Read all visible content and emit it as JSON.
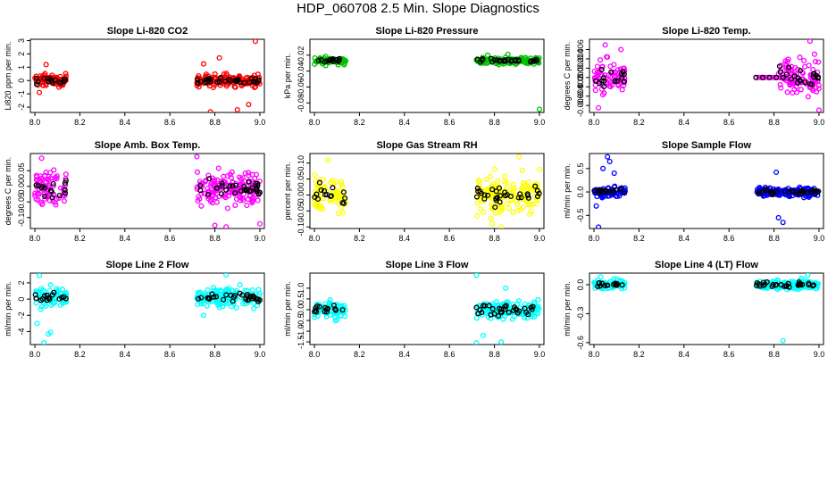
{
  "figure_title": "HDP_060708  2.5 Min. Slope Diagnostics",
  "chart_data": [
    {
      "type": "scatter",
      "title": "Slope Li-820 CO2",
      "ylabel": "Li820 ppm per min.",
      "color": "#ff0000",
      "xlim": [
        7.98,
        9.02
      ],
      "ylim": [
        -2.4,
        3.1
      ],
      "yticks": [
        -2,
        -1,
        0,
        1,
        2,
        3
      ],
      "ytick_labels": [
        "-2",
        "-1",
        "0",
        "1",
        "2",
        "3"
      ],
      "xticks": [
        8.0,
        8.2,
        8.4,
        8.6,
        8.8,
        9.0
      ],
      "xtick_labels": [
        "8.0",
        "8.2",
        "8.4",
        "8.6",
        "8.8",
        "9.0"
      ],
      "clusters": [
        [
          8.0,
          8.14
        ],
        [
          8.72,
          9.0
        ]
      ],
      "spread": 0.45,
      "center": 0.0,
      "points": [
        [
          8.98,
          2.95
        ],
        [
          8.9,
          -2.2
        ],
        [
          8.78,
          -2.35
        ],
        [
          8.95,
          -1.8
        ],
        [
          8.82,
          1.7
        ],
        [
          8.05,
          1.2
        ],
        [
          8.02,
          -0.9
        ],
        [
          8.75,
          1.25
        ]
      ]
    },
    {
      "type": "scatter",
      "title": "Slope Li-820 Pressure",
      "ylabel": "kPa per min.",
      "color": "#00c000",
      "xlim": [
        7.98,
        9.02
      ],
      "ylim": [
        -0.092,
        0.0
      ],
      "yticks": [
        -0.08,
        -0.06,
        -0.04,
        -0.02
      ],
      "ytick_labels": [
        "-0.08",
        "-0.06",
        "-0.04",
        "-0.02"
      ],
      "xticks": [
        8.0,
        8.2,
        8.4,
        8.6,
        8.8,
        9.0
      ],
      "xtick_labels": [
        "8.0",
        "8.2",
        "8.4",
        "8.6",
        "8.8",
        "9.0"
      ],
      "clusters": [
        [
          8.0,
          8.14
        ],
        [
          8.72,
          9.0
        ]
      ],
      "spread": 0.004,
      "center": -0.027,
      "points": [
        [
          9.0,
          -0.088
        ],
        [
          8.82,
          -0.032
        ],
        [
          8.94,
          -0.03
        ],
        [
          8.05,
          -0.033
        ],
        [
          8.77,
          -0.02
        ],
        [
          8.86,
          -0.019
        ]
      ]
    },
    {
      "type": "scatter",
      "title": "Slope Li-820 Temp.",
      "ylabel": "degrees C per min.",
      "color": "#ff00ff",
      "xlim": [
        7.98,
        9.02
      ],
      "ylim": [
        -0.0075,
        0.0082
      ],
      "yticks": [
        -0.006,
        -0.004,
        -0.002,
        0.0,
        0.002,
        0.004,
        0.006
      ],
      "ytick_labels": [
        "-0.006",
        "-0.004",
        "-0.002",
        "0.000",
        "0.002",
        "0.004",
        "0.006"
      ],
      "xticks": [
        8.0,
        8.2,
        8.4,
        8.6,
        8.8,
        9.0
      ],
      "xtick_labels": [
        "8.0",
        "8.2",
        "8.4",
        "8.6",
        "8.8",
        "9.0"
      ],
      "clusters": [
        [
          8.0,
          8.14
        ],
        [
          8.82,
          9.0
        ]
      ],
      "spread": 0.0035,
      "center": 0.0,
      "flat_run": [
        8.72,
        8.86
      ],
      "points": [
        [
          8.02,
          -0.0065
        ],
        [
          9.0,
          -0.007
        ],
        [
          8.96,
          0.0078
        ],
        [
          8.05,
          0.007
        ],
        [
          8.12,
          0.006
        ],
        [
          8.98,
          0.005
        ]
      ]
    },
    {
      "type": "scatter",
      "title": "Slope Amb. Box Temp.",
      "ylabel": "degrees C per min.",
      "color": "#ff00ff",
      "xlim": [
        7.98,
        9.02
      ],
      "ylim": [
        -0.135,
        0.105
      ],
      "yticks": [
        -0.1,
        -0.05,
        0.0,
        0.05
      ],
      "ytick_labels": [
        "-0.10",
        "-0.05",
        "0.00",
        "0.05"
      ],
      "xticks": [
        8.0,
        8.2,
        8.4,
        8.6,
        8.8,
        9.0
      ],
      "xtick_labels": [
        "8.0",
        "8.2",
        "8.4",
        "8.6",
        "8.8",
        "9.0"
      ],
      "clusters": [
        [
          8.0,
          8.14
        ],
        [
          8.72,
          9.0
        ]
      ],
      "spread": 0.055,
      "center": -0.005,
      "points": [
        [
          8.85,
          -0.13
        ],
        [
          8.72,
          0.095
        ],
        [
          8.03,
          0.09
        ],
        [
          9.0,
          -0.12
        ],
        [
          8.8,
          -0.125
        ]
      ]
    },
    {
      "type": "scatter",
      "title": "Slope Gas Stream RH",
      "ylabel": "percent per min.",
      "color": "#ffff00",
      "xlim": [
        7.98,
        9.02
      ],
      "ylim": [
        -0.105,
        0.13
      ],
      "yticks": [
        -0.1,
        -0.05,
        0.0,
        0.05,
        0.1
      ],
      "ytick_labels": [
        "-0.10",
        "-0.05",
        "0.00",
        "0.05",
        "0.10"
      ],
      "xticks": [
        8.0,
        8.2,
        8.4,
        8.6,
        8.8,
        9.0
      ],
      "xtick_labels": [
        "8.0",
        "8.2",
        "8.4",
        "8.6",
        "8.8",
        "9.0"
      ],
      "clusters": [
        [
          8.0,
          8.14
        ],
        [
          8.72,
          9.0
        ]
      ],
      "spread": 0.055,
      "center": 0.0,
      "points": [
        [
          8.91,
          0.12
        ],
        [
          8.83,
          -0.1
        ],
        [
          8.06,
          0.11
        ],
        [
          8.79,
          -0.09
        ],
        [
          9.0,
          0.08
        ]
      ]
    },
    {
      "type": "scatter",
      "title": "Slope Sample Flow",
      "ylabel": "ml/min per min.",
      "color": "#0000ff",
      "xlim": [
        7.98,
        9.02
      ],
      "ylim": [
        -0.78,
        0.82
      ],
      "yticks": [
        -0.5,
        0.0,
        0.5
      ],
      "ytick_labels": [
        "-0.5",
        "0.0",
        "0.5"
      ],
      "xticks": [
        8.0,
        8.2,
        8.4,
        8.6,
        8.8,
        9.0
      ],
      "xtick_labels": [
        "8.0",
        "8.2",
        "8.4",
        "8.6",
        "8.8",
        "9.0"
      ],
      "clusters": [
        [
          8.0,
          8.14
        ],
        [
          8.72,
          9.0
        ]
      ],
      "spread": 0.1,
      "center": 0.0,
      "points": [
        [
          8.02,
          -0.75
        ],
        [
          8.06,
          0.75
        ],
        [
          8.07,
          0.65
        ],
        [
          8.04,
          0.5
        ],
        [
          8.82,
          -0.55
        ],
        [
          8.81,
          0.42
        ],
        [
          8.84,
          -0.65
        ],
        [
          8.09,
          0.4
        ],
        [
          8.01,
          -0.3
        ]
      ]
    },
    {
      "type": "scatter",
      "title": "Slope Line 2 Flow",
      "ylabel": "ml/min per min.",
      "color": "#00ffff",
      "xlim": [
        7.98,
        9.02
      ],
      "ylim": [
        -5.6,
        3.2
      ],
      "yticks": [
        -4,
        -2,
        0,
        2
      ],
      "ytick_labels": [
        "-4",
        "-2",
        "0",
        "2"
      ],
      "xticks": [
        8.0,
        8.2,
        8.4,
        8.6,
        8.8,
        9.0
      ],
      "xtick_labels": [
        "8.0",
        "8.2",
        "8.4",
        "8.6",
        "8.8",
        "9.0"
      ],
      "clusters": [
        [
          8.0,
          8.14
        ],
        [
          8.72,
          9.0
        ]
      ],
      "spread": 1.1,
      "center": 0.2,
      "points": [
        [
          8.04,
          -5.4
        ],
        [
          8.06,
          -4.3
        ],
        [
          8.07,
          -4.1
        ],
        [
          8.02,
          2.9
        ],
        [
          8.85,
          3.0
        ],
        [
          8.01,
          -3.0
        ],
        [
          8.75,
          -2.0
        ]
      ]
    },
    {
      "type": "scatter",
      "title": "Slope Line 3 Flow",
      "ylabel": "ml/min per min.",
      "color": "#00ffff",
      "xlim": [
        7.98,
        9.02
      ],
      "ylim": [
        -1.62,
        1.7
      ],
      "yticks": [
        -1.5,
        -1.0,
        -0.5,
        0.0,
        0.5,
        1.0
      ],
      "ytick_labels": [
        "-1.5",
        "-1.0",
        "-0.5",
        "0.0",
        "0.5",
        "1.0"
      ],
      "xticks": [
        8.0,
        8.2,
        8.4,
        8.6,
        8.8,
        9.0
      ],
      "xtick_labels": [
        "8.0",
        "8.2",
        "8.4",
        "8.6",
        "8.8",
        "9.0"
      ],
      "clusters": [
        [
          8.0,
          8.14
        ],
        [
          8.72,
          9.0
        ]
      ],
      "spread": 0.4,
      "center": 0.0,
      "points": [
        [
          8.72,
          1.6
        ],
        [
          8.72,
          -1.55
        ],
        [
          8.83,
          -1.5
        ],
        [
          8.75,
          -1.2
        ],
        [
          8.85,
          1.0
        ]
      ]
    },
    {
      "type": "scatter",
      "title": "Slope Line 4 (LT) Flow",
      "ylabel": "ml/min per min.",
      "color": "#00ffff",
      "xlim": [
        7.98,
        9.02
      ],
      "ylim": [
        -0.62,
        0.12
      ],
      "yticks": [
        -0.6,
        -0.3,
        0.0
      ],
      "ytick_labels": [
        "-0.6",
        "-0.3",
        "0.0"
      ],
      "xticks": [
        8.0,
        8.2,
        8.4,
        8.6,
        8.8,
        9.0
      ],
      "xtick_labels": [
        "8.0",
        "8.2",
        "8.4",
        "8.6",
        "8.8",
        "9.0"
      ],
      "clusters": [
        [
          8.0,
          8.14
        ],
        [
          8.72,
          9.0
        ]
      ],
      "spread": 0.045,
      "center": 0.0,
      "points": [
        [
          8.84,
          -0.58
        ],
        [
          8.03,
          0.08
        ],
        [
          8.95,
          0.1
        ]
      ]
    }
  ]
}
